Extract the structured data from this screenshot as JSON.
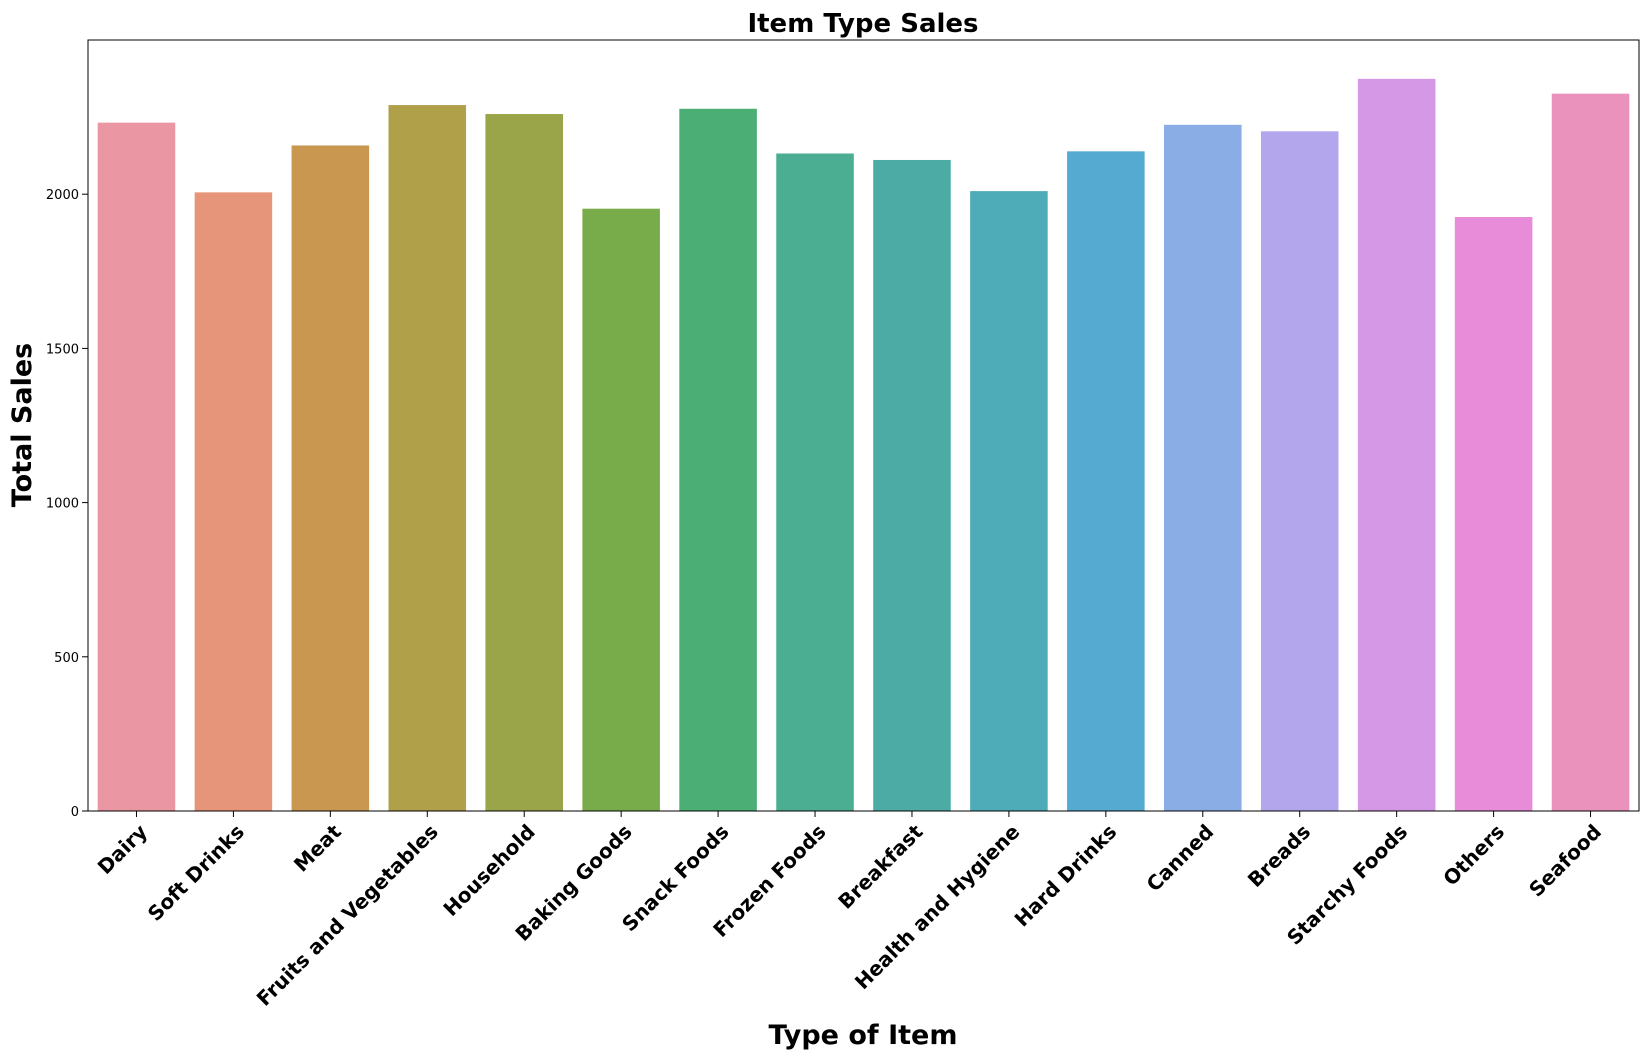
{
  "chart_data": {
    "type": "bar",
    "title": "Item Type Sales",
    "xlabel": "Type of Item",
    "ylabel": "Total Sales",
    "categories": [
      "Dairy",
      "Soft Drinks",
      "Meat",
      "Fruits and Vegetables",
      "Household",
      "Baking Goods",
      "Snack Foods",
      "Frozen Foods",
      "Breakfast",
      "Health and Hygiene",
      "Hard Drinks",
      "Canned",
      "Breads",
      "Starchy Foods",
      "Others",
      "Seafood"
    ],
    "values": [
      2232,
      2006,
      2158,
      2289,
      2260,
      1953,
      2277,
      2132,
      2111,
      2010,
      2139,
      2225,
      2204,
      2374,
      1926,
      2326
    ],
    "colors": [
      "#ea96a3",
      "#e7957a",
      "#c99750",
      "#afa049",
      "#9aa449",
      "#78ac4a",
      "#4bae74",
      "#4bae93",
      "#4caca5",
      "#4eabb8",
      "#54aad0",
      "#8aadE5",
      "#b4a6ec",
      "#d598e6",
      "#e88bd9",
      "#ea92bc"
    ],
    "yticks": [
      0,
      500,
      1000,
      1500,
      2000
    ],
    "ylim": [
      0,
      2500
    ],
    "grid": false,
    "legend": "none"
  }
}
